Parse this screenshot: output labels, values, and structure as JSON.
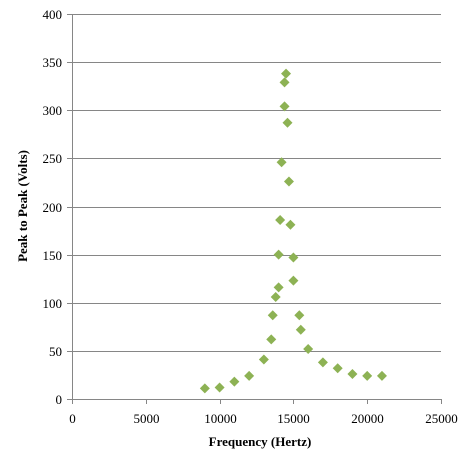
{
  "chart_data": {
    "type": "scatter",
    "title": "",
    "xlabel": "Frequency  (Hertz)",
    "ylabel": "Peak to Peak (Volts)",
    "xlim": [
      0,
      25000
    ],
    "ylim": [
      0,
      400
    ],
    "x_ticks": [
      0,
      5000,
      10000,
      15000,
      20000,
      25000
    ],
    "y_ticks": [
      0,
      50,
      100,
      150,
      200,
      250,
      300,
      350,
      400
    ],
    "x_tick_labels": [
      "0",
      "5000",
      "10000",
      "15000",
      "20000",
      "25000"
    ],
    "y_tick_labels": [
      "0",
      "50",
      "100",
      "150",
      "200",
      "250",
      "300",
      "350",
      "400"
    ],
    "grid": "horizontal",
    "legend": "none",
    "marker": "diamond",
    "marker_color": "#8db254",
    "series": [
      {
        "points": [
          {
            "x": 9000,
            "y": 11
          },
          {
            "x": 10000,
            "y": 12
          },
          {
            "x": 11000,
            "y": 18
          },
          {
            "x": 12000,
            "y": 24
          },
          {
            "x": 13000,
            "y": 41
          },
          {
            "x": 13500,
            "y": 62
          },
          {
            "x": 13600,
            "y": 87
          },
          {
            "x": 13800,
            "y": 106
          },
          {
            "x": 14000,
            "y": 116
          },
          {
            "x": 14000,
            "y": 150
          },
          {
            "x": 14100,
            "y": 186
          },
          {
            "x": 14200,
            "y": 246
          },
          {
            "x": 14400,
            "y": 304
          },
          {
            "x": 14400,
            "y": 329
          },
          {
            "x": 14500,
            "y": 338
          },
          {
            "x": 14600,
            "y": 287
          },
          {
            "x": 14700,
            "y": 226
          },
          {
            "x": 14800,
            "y": 181
          },
          {
            "x": 15000,
            "y": 147
          },
          {
            "x": 15000,
            "y": 123
          },
          {
            "x": 15400,
            "y": 87
          },
          {
            "x": 15500,
            "y": 72
          },
          {
            "x": 16000,
            "y": 52
          },
          {
            "x": 17000,
            "y": 38
          },
          {
            "x": 18000,
            "y": 32
          },
          {
            "x": 19000,
            "y": 26
          },
          {
            "x": 20000,
            "y": 24
          },
          {
            "x": 21000,
            "y": 24
          }
        ]
      }
    ]
  }
}
